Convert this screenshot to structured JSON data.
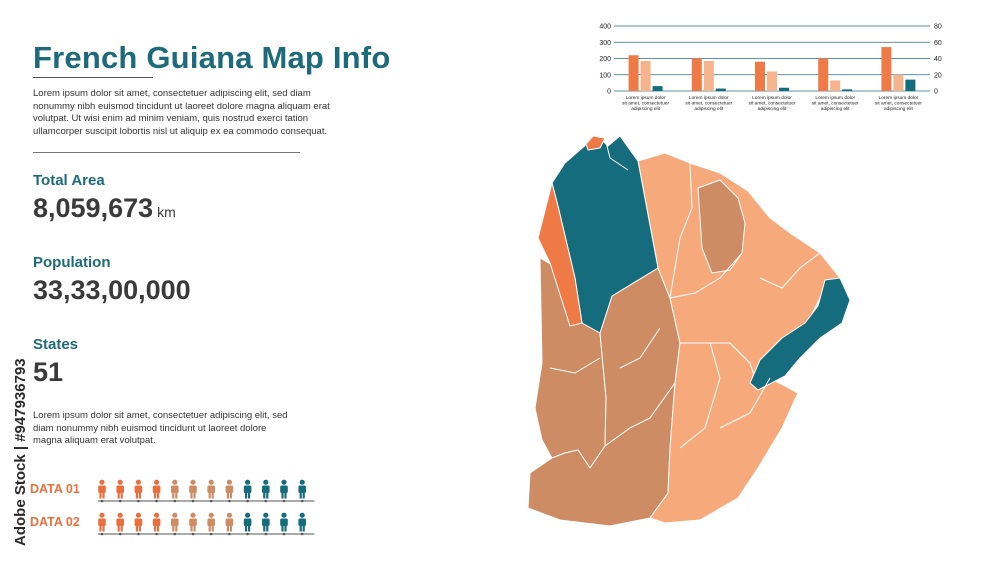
{
  "header": {
    "title": "French Guiana Map Info",
    "intro": "Lorem ipsum dolor sit amet, consectetuer adipiscing elit, sed diam nonummy nibh euismod tincidunt ut laoreet dolore magna aliquam erat volutpat. Ut wisi enim ad minim veniam, quis nostrud exerci tation ullamcorper suscipit lobortis nisl ut aliquip ex ea commodo consequat."
  },
  "stats": {
    "area_label": "Total Area",
    "area_value": "8,059,673",
    "area_unit": "km",
    "population_label": "Population",
    "population_value": "33,33,00,000",
    "states_label": "States",
    "states_value": "51"
  },
  "description": "Lorem ipsum dolor sit amet, consectetuer adipiscing elit, sed diam nonummy nibh euismod tincidunt ut laoreet dolore magna aliquam erat volutpat.",
  "data_rows": [
    {
      "label": "DATA 01",
      "colors": [
        "#e9703e",
        "#e9703e",
        "#e9703e",
        "#e9703e",
        "#cd8c63",
        "#cd8c63",
        "#cd8c63",
        "#cd8c63",
        "#156c7d",
        "#156c7d",
        "#156c7d",
        "#156c7d"
      ]
    },
    {
      "label": "DATA 02",
      "colors": [
        "#e9703e",
        "#e9703e",
        "#e9703e",
        "#e9703e",
        "#cd8c63",
        "#cd8c63",
        "#cd8c63",
        "#cd8c63",
        "#156c7d",
        "#156c7d",
        "#156c7d",
        "#156c7d"
      ]
    }
  ],
  "watermark": "Adobe Stock | #947936793",
  "colors": {
    "accent_teal": "#1d6b7a",
    "orange": "#f07a46",
    "brown": "#cd8c63",
    "peach": "#f6aa7b",
    "teal": "#156c7d"
  },
  "chart_data": {
    "type": "bar",
    "categories": [
      "Lorem ipsum dolor sit amet, consectetuer adipiscing elit",
      "Lorem ipsum dolor sit amet, consectetuer adipiscing elit",
      "Lorem ipsum dolor sit amet, consectetuer adipiscing elit",
      "Lorem ipsum dolor sit amet, consectetuer adipiscing elit",
      "Lorem ipsum dolor sit amet, consectetuer adipiscing elit"
    ],
    "series": [
      {
        "axis": "left",
        "color": "#f07a46",
        "values": [
          220,
          200,
          180,
          200,
          270
        ]
      },
      {
        "axis": "left",
        "color": "#f6b48c",
        "values": [
          185,
          185,
          120,
          65,
          100
        ]
      },
      {
        "axis": "right",
        "color": "#156c7d",
        "values": [
          6,
          3,
          4,
          2,
          14
        ]
      }
    ],
    "left_axis": {
      "range": [
        0,
        400
      ],
      "ticks": [
        "0",
        "100",
        "200",
        "300",
        "400"
      ]
    },
    "right_axis": {
      "range": [
        0,
        80
      ],
      "ticks": [
        "0",
        "20",
        "40",
        "60",
        "80"
      ]
    },
    "grid": true
  }
}
